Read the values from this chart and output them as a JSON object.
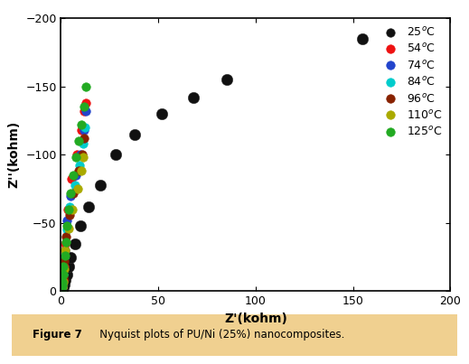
{
  "xlabel": "Z'(kohm)",
  "ylabel": "Z''(kohm)",
  "xlim": [
    0,
    200
  ],
  "ylim": [
    0,
    -200
  ],
  "xticks": [
    0,
    50,
    100,
    150,
    200
  ],
  "yticks": [
    0,
    -50,
    -100,
    -150,
    -200
  ],
  "series": [
    {
      "label": "25$^o$C",
      "color": "#111111",
      "markersize": 9,
      "x": [
        0.5,
        1,
        1.5,
        2,
        3,
        4,
        5,
        7,
        10,
        14,
        20,
        28,
        38,
        52,
        68,
        85,
        155
      ],
      "y": [
        -1,
        -3,
        -5,
        -8,
        -12,
        -18,
        -25,
        -35,
        -48,
        -62,
        -78,
        -100,
        -115,
        -130,
        -142,
        -155,
        -185
      ]
    },
    {
      "label": "54$^o$C",
      "color": "#ee1111",
      "markersize": 7,
      "x": [
        0.3,
        0.6,
        1.0,
        1.5,
        2.2,
        3.5,
        5.5,
        8.0,
        10.5,
        12.0,
        13.0
      ],
      "y": [
        -1,
        -3,
        -8,
        -18,
        -35,
        -60,
        -82,
        -100,
        -118,
        -132,
        -138
      ]
    },
    {
      "label": "74$^o$C",
      "color": "#2244cc",
      "markersize": 7,
      "x": [
        0.2,
        0.5,
        0.9,
        1.4,
        2.0,
        3.2,
        5.0,
        7.5,
        10.0,
        12.0,
        13.0
      ],
      "y": [
        -1,
        -3,
        -7,
        -16,
        -30,
        -52,
        -70,
        -85,
        -100,
        -118,
        -132
      ]
    },
    {
      "label": "84$^o$C",
      "color": "#00cccc",
      "markersize": 7,
      "x": [
        0.2,
        0.4,
        0.8,
        1.2,
        1.8,
        2.8,
        4.5,
        7.0,
        9.5,
        11.5,
        12.5
      ],
      "y": [
        -0.5,
        -2,
        -5,
        -12,
        -25,
        -45,
        -62,
        -78,
        -92,
        -108,
        -120
      ]
    },
    {
      "label": "96$^o$C",
      "color": "#882200",
      "markersize": 7,
      "x": [
        0.15,
        0.35,
        0.7,
        1.1,
        1.7,
        2.6,
        4.2,
        6.5,
        9.0,
        11.0,
        12.0
      ],
      "y": [
        -0.3,
        -1.5,
        -4,
        -10,
        -22,
        -40,
        -56,
        -72,
        -88,
        -100,
        -112
      ]
    },
    {
      "label": "110$^o$C",
      "color": "#aaaa00",
      "markersize": 7,
      "x": [
        0.1,
        0.3,
        0.6,
        1.0,
        1.5,
        2.3,
        3.8,
        6.0,
        8.5,
        10.5,
        11.5
      ],
      "y": [
        -0.2,
        -1,
        -3,
        -7,
        -16,
        -30,
        -46,
        -60,
        -75,
        -88,
        -98
      ]
    },
    {
      "label": "125$^o$C",
      "color": "#22aa22",
      "markersize": 7,
      "x": [
        0.05,
        0.1,
        0.2,
        0.3,
        0.5,
        0.7,
        1.0,
        1.4,
        1.9,
        2.5,
        3.2,
        4.0,
        5.0,
        6.2,
        7.5,
        9.0,
        10.5,
        11.8,
        12.8
      ],
      "y": [
        -0.1,
        -0.3,
        -0.8,
        -1.8,
        -4,
        -7,
        -12,
        -18,
        -26,
        -36,
        -48,
        -60,
        -72,
        -85,
        -98,
        -110,
        -122,
        -135,
        -150
      ]
    }
  ],
  "bg_color": "#ffffff",
  "border_color": "#cc8833",
  "caption_bg": "#f0d090",
  "caption_bold": "Figure 7",
  "caption_text": "   Nyquist plots of PU/Ni (25%) nanocomposites."
}
